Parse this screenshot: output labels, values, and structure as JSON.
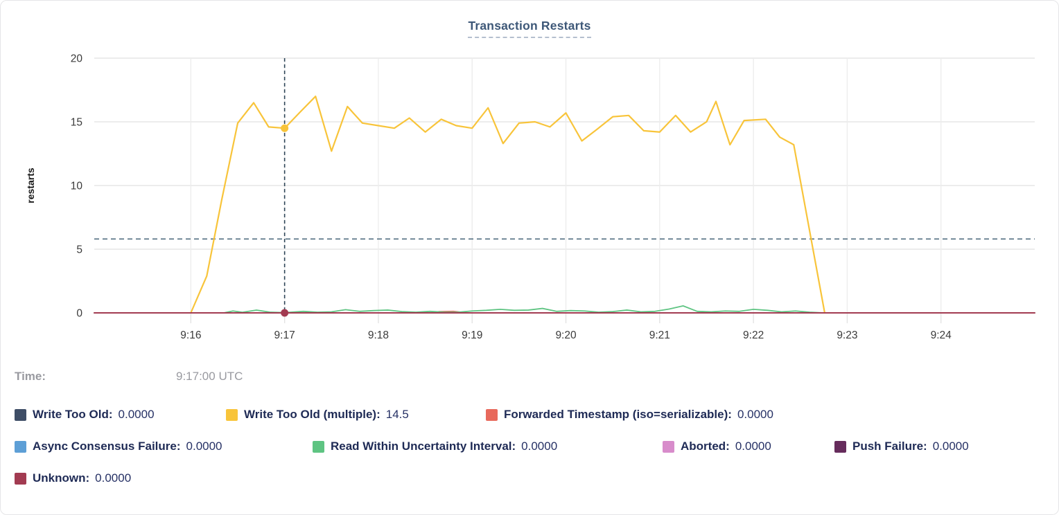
{
  "title": "Transaction Restarts",
  "time_row": {
    "label": "Time:",
    "value": "9:17:00 UTC"
  },
  "legend": {
    "rows": [
      {
        "items": [
          {
            "label": "Write Too Old:",
            "value": "0.0000",
            "color": "#3e4d66"
          },
          {
            "label": "Write Too Old (multiple):",
            "value": "14.5",
            "color": "#f8c43a"
          },
          {
            "label": "Forwarded Timestamp (iso=serializable):",
            "value": "0.0000",
            "color": "#e8695c"
          }
        ]
      },
      {
        "items": [
          {
            "label": "Async Consensus Failure:",
            "value": "0.0000",
            "color": "#5d9fd6"
          },
          {
            "label": "Read Within Uncertainty Interval:",
            "value": "0.0000",
            "color": "#5ec482"
          },
          {
            "label": "Aborted:",
            "value": "0.0000",
            "color": "#d88ccb"
          },
          {
            "label": "Push Failure:",
            "value": "0.0000",
            "color": "#662c5c"
          }
        ]
      },
      {
        "items": [
          {
            "label": "Unknown:",
            "value": "0.0000",
            "color": "#a23b51"
          }
        ]
      }
    ]
  },
  "chart_data": {
    "type": "line",
    "title": "Transaction Restarts",
    "xlabel": "",
    "ylabel": "restarts",
    "ylim": [
      0,
      20
    ],
    "yticks": [
      0,
      5,
      10,
      15,
      20
    ],
    "x_domain_minutes": [
      554.97,
      565.0
    ],
    "xticks": [
      {
        "t": 556,
        "label": "9:16"
      },
      {
        "t": 557,
        "label": "9:17"
      },
      {
        "t": 558,
        "label": "9:18"
      },
      {
        "t": 559,
        "label": "9:19"
      },
      {
        "t": 560,
        "label": "9:20"
      },
      {
        "t": 561,
        "label": "9:21"
      },
      {
        "t": 562,
        "label": "9:22"
      },
      {
        "t": 563,
        "label": "9:23"
      },
      {
        "t": 564,
        "label": "9:24"
      }
    ],
    "grid": true,
    "legend_position": "bottom",
    "reference_line": {
      "value": 5.8,
      "color": "#5d7789",
      "style": "dashed"
    },
    "crosshair": {
      "t": 557,
      "time_label": "9:17:00 UTC",
      "color": "#2e4557",
      "points": [
        {
          "series": "Write Too Old (multiple)",
          "value": 14.5,
          "color": "#f8c43a"
        },
        {
          "series": "Unknown",
          "value": 0,
          "color": "#a23b51"
        }
      ]
    },
    "series": [
      {
        "name": "Write Too Old",
        "color": "#3e4d66",
        "width": 1.6,
        "points": [
          [
            554.97,
            0
          ],
          [
            565,
            0
          ]
        ]
      },
      {
        "name": "Async Consensus Failure",
        "color": "#5d9fd6",
        "width": 1.6,
        "points": [
          [
            554.97,
            0
          ],
          [
            565,
            0
          ]
        ]
      },
      {
        "name": "Aborted",
        "color": "#d88ccb",
        "width": 1.6,
        "points": [
          [
            554.97,
            0
          ],
          [
            565,
            0
          ]
        ]
      },
      {
        "name": "Push Failure",
        "color": "#662c5c",
        "width": 1.6,
        "points": [
          [
            554.97,
            0
          ],
          [
            565,
            0
          ]
        ]
      },
      {
        "name": "Forwarded Timestamp (iso=serializable)",
        "color": "#e8695c",
        "width": 1.8,
        "points": [
          [
            554.97,
            0
          ],
          [
            558.55,
            0
          ],
          [
            558.65,
            0.1
          ],
          [
            558.8,
            0.12
          ],
          [
            558.95,
            0
          ],
          [
            565,
            0
          ]
        ]
      },
      {
        "name": "Write Too Old (multiple)",
        "color": "#f8c43a",
        "width": 2.2,
        "points": [
          [
            556.0,
            0
          ],
          [
            556.17,
            2.9
          ],
          [
            556.33,
            8.9
          ],
          [
            556.5,
            14.9
          ],
          [
            556.67,
            16.5
          ],
          [
            556.83,
            14.6
          ],
          [
            557.0,
            14.5
          ],
          [
            557.17,
            15.8
          ],
          [
            557.33,
            17.0
          ],
          [
            557.5,
            12.7
          ],
          [
            557.67,
            16.2
          ],
          [
            557.83,
            14.9
          ],
          [
            558.0,
            14.7
          ],
          [
            558.17,
            14.5
          ],
          [
            558.33,
            15.3
          ],
          [
            558.5,
            14.2
          ],
          [
            558.67,
            15.2
          ],
          [
            558.83,
            14.7
          ],
          [
            559.0,
            14.5
          ],
          [
            559.17,
            16.1
          ],
          [
            559.33,
            13.3
          ],
          [
            559.5,
            14.9
          ],
          [
            559.67,
            15.0
          ],
          [
            559.83,
            14.6
          ],
          [
            560.0,
            15.7
          ],
          [
            560.17,
            13.5
          ],
          [
            560.33,
            14.4
          ],
          [
            560.5,
            15.4
          ],
          [
            560.67,
            15.5
          ],
          [
            560.83,
            14.3
          ],
          [
            561.0,
            14.2
          ],
          [
            561.17,
            15.5
          ],
          [
            561.33,
            14.2
          ],
          [
            561.5,
            15.0
          ],
          [
            561.6,
            16.6
          ],
          [
            561.75,
            13.2
          ],
          [
            561.9,
            15.1
          ],
          [
            562.13,
            15.2
          ],
          [
            562.28,
            13.8
          ],
          [
            562.43,
            13.2
          ],
          [
            562.76,
            0
          ]
        ]
      },
      {
        "name": "Read Within Uncertainty Interval",
        "color": "#5ec482",
        "width": 1.8,
        "points": [
          [
            554.97,
            0
          ],
          [
            556.35,
            0
          ],
          [
            556.45,
            0.15
          ],
          [
            556.55,
            0.05
          ],
          [
            556.7,
            0.22
          ],
          [
            556.85,
            0.05
          ],
          [
            557.0,
            0.02
          ],
          [
            557.2,
            0.12
          ],
          [
            557.35,
            0.05
          ],
          [
            557.5,
            0.08
          ],
          [
            557.65,
            0.25
          ],
          [
            557.8,
            0.12
          ],
          [
            557.95,
            0.18
          ],
          [
            558.1,
            0.22
          ],
          [
            558.25,
            0.1
          ],
          [
            558.4,
            0.05
          ],
          [
            558.55,
            0.12
          ],
          [
            558.7,
            0.06
          ],
          [
            558.85,
            0.05
          ],
          [
            559.0,
            0.15
          ],
          [
            559.15,
            0.2
          ],
          [
            559.3,
            0.28
          ],
          [
            559.45,
            0.2
          ],
          [
            559.6,
            0.22
          ],
          [
            559.75,
            0.35
          ],
          [
            559.9,
            0.12
          ],
          [
            560.05,
            0.18
          ],
          [
            560.2,
            0.15
          ],
          [
            560.35,
            0.05
          ],
          [
            560.5,
            0.1
          ],
          [
            560.65,
            0.22
          ],
          [
            560.8,
            0.08
          ],
          [
            560.95,
            0.12
          ],
          [
            561.1,
            0.3
          ],
          [
            561.25,
            0.55
          ],
          [
            561.4,
            0.12
          ],
          [
            561.55,
            0.08
          ],
          [
            561.7,
            0.15
          ],
          [
            561.85,
            0.12
          ],
          [
            562.0,
            0.28
          ],
          [
            562.15,
            0.2
          ],
          [
            562.3,
            0.08
          ],
          [
            562.45,
            0.15
          ],
          [
            562.6,
            0.05
          ],
          [
            562.75,
            0
          ],
          [
            565,
            0
          ]
        ]
      },
      {
        "name": "Unknown",
        "color": "#a23b51",
        "width": 2.0,
        "points": [
          [
            554.97,
            0
          ],
          [
            565,
            0
          ]
        ]
      }
    ]
  }
}
